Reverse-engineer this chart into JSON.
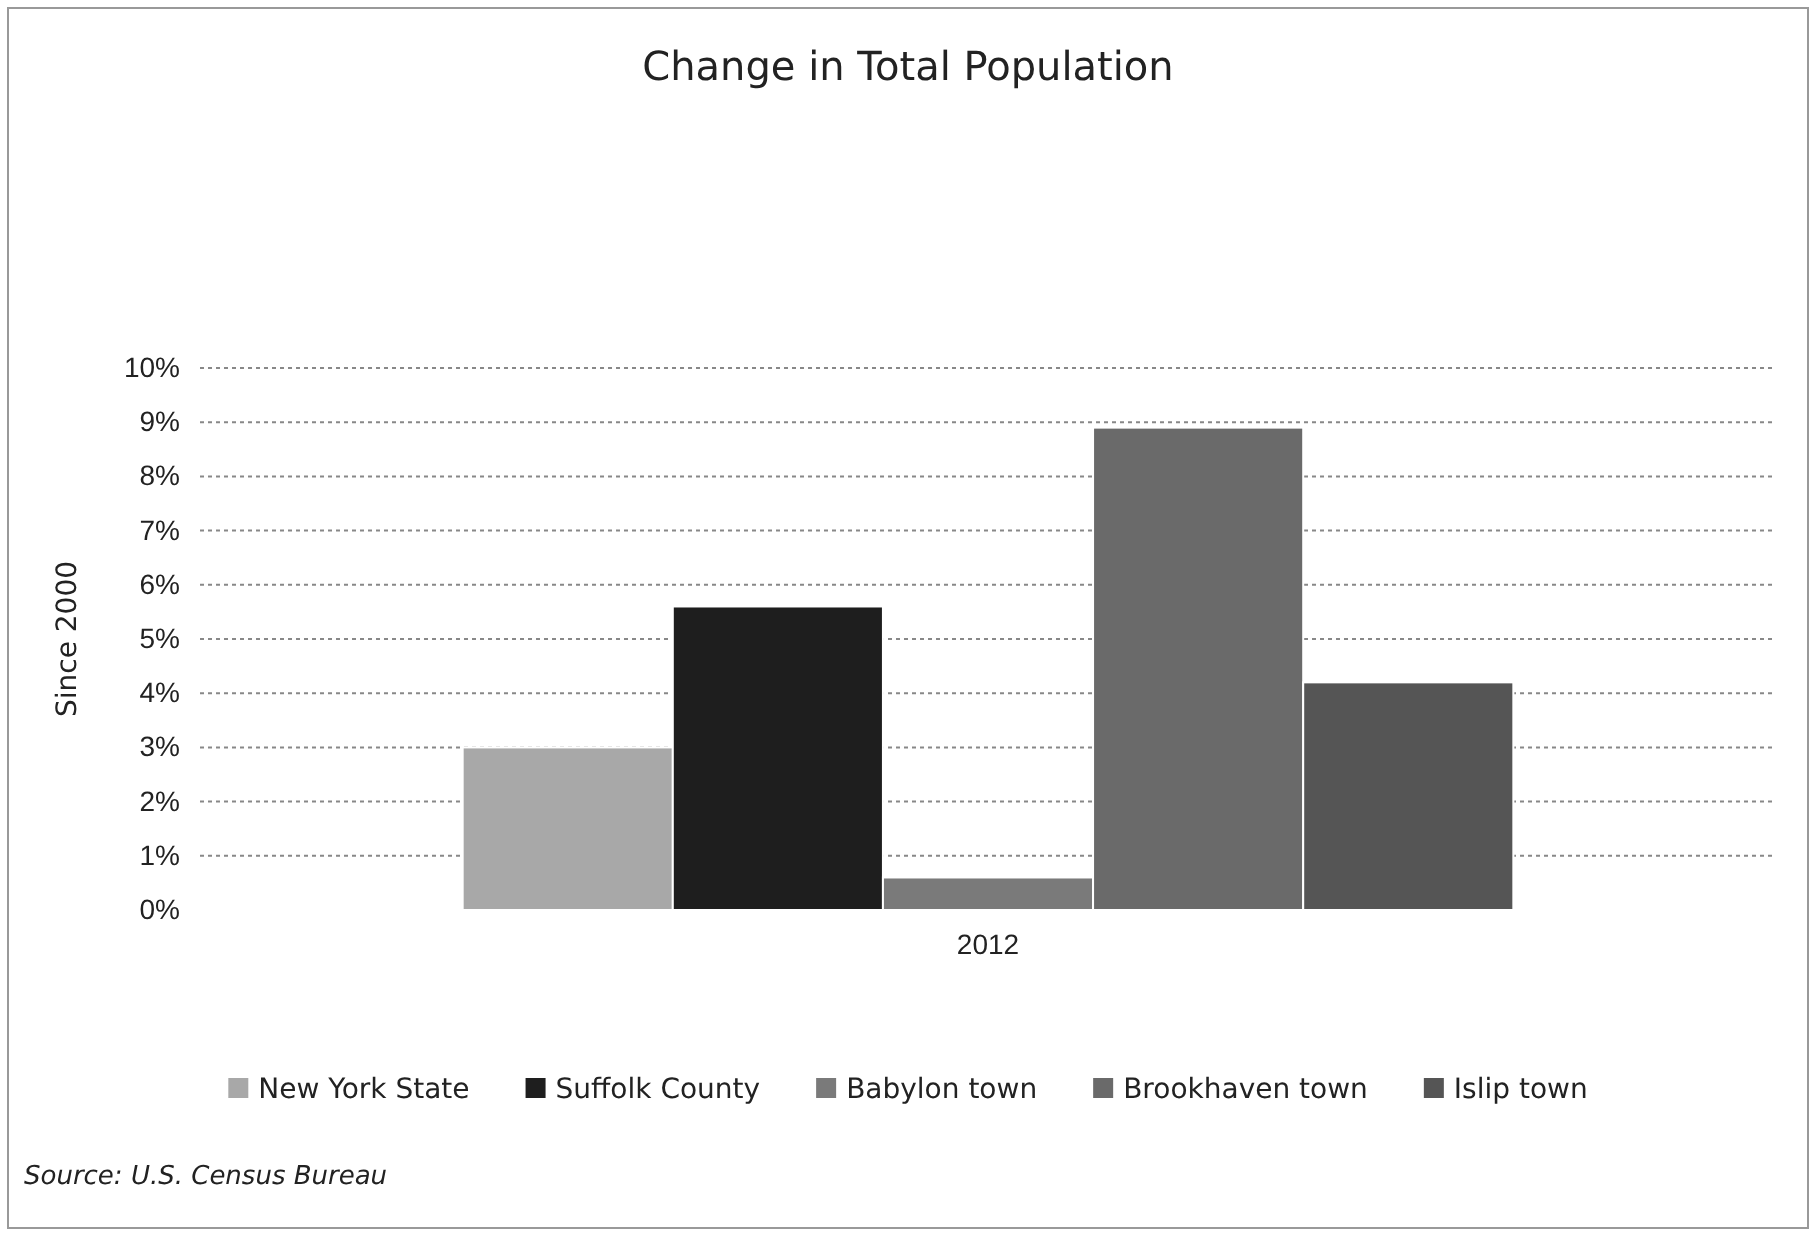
{
  "chart_data": {
    "type": "bar",
    "title": "Change in Total Population",
    "ylabel": "Since 2000",
    "categories": [
      "2012"
    ],
    "series": [
      {
        "name": "New York State",
        "color": "#a8a8a8",
        "values": [
          3.0
        ]
      },
      {
        "name": "Suffolk County",
        "color": "#1e1e1e",
        "values": [
          5.6
        ]
      },
      {
        "name": "Babylon town",
        "color": "#7a7a7a",
        "values": [
          0.6
        ]
      },
      {
        "name": "Brookhaven town",
        "color": "#6a6a6a",
        "values": [
          8.9
        ]
      },
      {
        "name": "Islip town",
        "color": "#555555",
        "values": [
          4.2
        ]
      }
    ],
    "ylim": [
      0,
      10
    ],
    "yticks": [
      {
        "value": 0,
        "label": "0%"
      },
      {
        "value": 1,
        "label": "1%"
      },
      {
        "value": 2,
        "label": "2%"
      },
      {
        "value": 3,
        "label": "3%"
      },
      {
        "value": 4,
        "label": "4%"
      },
      {
        "value": 5,
        "label": "5%"
      },
      {
        "value": 6,
        "label": "6%"
      },
      {
        "value": 7,
        "label": "7%"
      },
      {
        "value": 8,
        "label": "8%"
      },
      {
        "value": 9,
        "label": "9%"
      },
      {
        "value": 10,
        "label": "10%"
      }
    ],
    "grid": "y",
    "legend": "bottom",
    "annotations": [
      "Source: U.S. Census Bureau"
    ]
  }
}
